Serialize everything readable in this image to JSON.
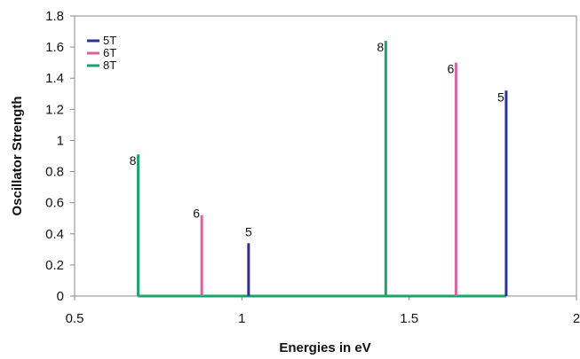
{
  "chart_data": {
    "type": "bar",
    "title": "",
    "xlabel": "Energies in eV",
    "ylabel": "Oscillator Strength",
    "xlim": [
      0.5,
      2
    ],
    "ylim": [
      0,
      1.8
    ],
    "x_ticks": [
      0.5,
      1,
      1.5,
      2
    ],
    "x_tick_labels": [
      "0.5",
      "1",
      "1.5",
      "2"
    ],
    "y_ticks": [
      0,
      0.2,
      0.4,
      0.6,
      0.8,
      1,
      1.2,
      1.4,
      1.6,
      1.8
    ],
    "y_tick_labels": [
      "0",
      "0.2",
      "0.4",
      "0.6",
      "0.8",
      "1",
      "1.2",
      "1.4",
      "1.6",
      "1.8"
    ],
    "grid": false,
    "legend_position": "top-left",
    "series": [
      {
        "name": "5T",
        "color": "#2e3192",
        "points": [
          {
            "x": 1.02,
            "y": 0.34,
            "label": "5"
          },
          {
            "x": 1.79,
            "y": 1.32,
            "label": "5"
          }
        ]
      },
      {
        "name": "6T",
        "color": "#e0609e",
        "points": [
          {
            "x": 0.88,
            "y": 0.52,
            "label": "6"
          },
          {
            "x": 1.64,
            "y": 1.5,
            "label": "6"
          }
        ]
      },
      {
        "name": "8T",
        "color": "#1aa36a",
        "points": [
          {
            "x": 0.69,
            "y": 0.91,
            "label": "8"
          },
          {
            "x": 1.43,
            "y": 1.64,
            "label": "8"
          }
        ]
      }
    ]
  }
}
